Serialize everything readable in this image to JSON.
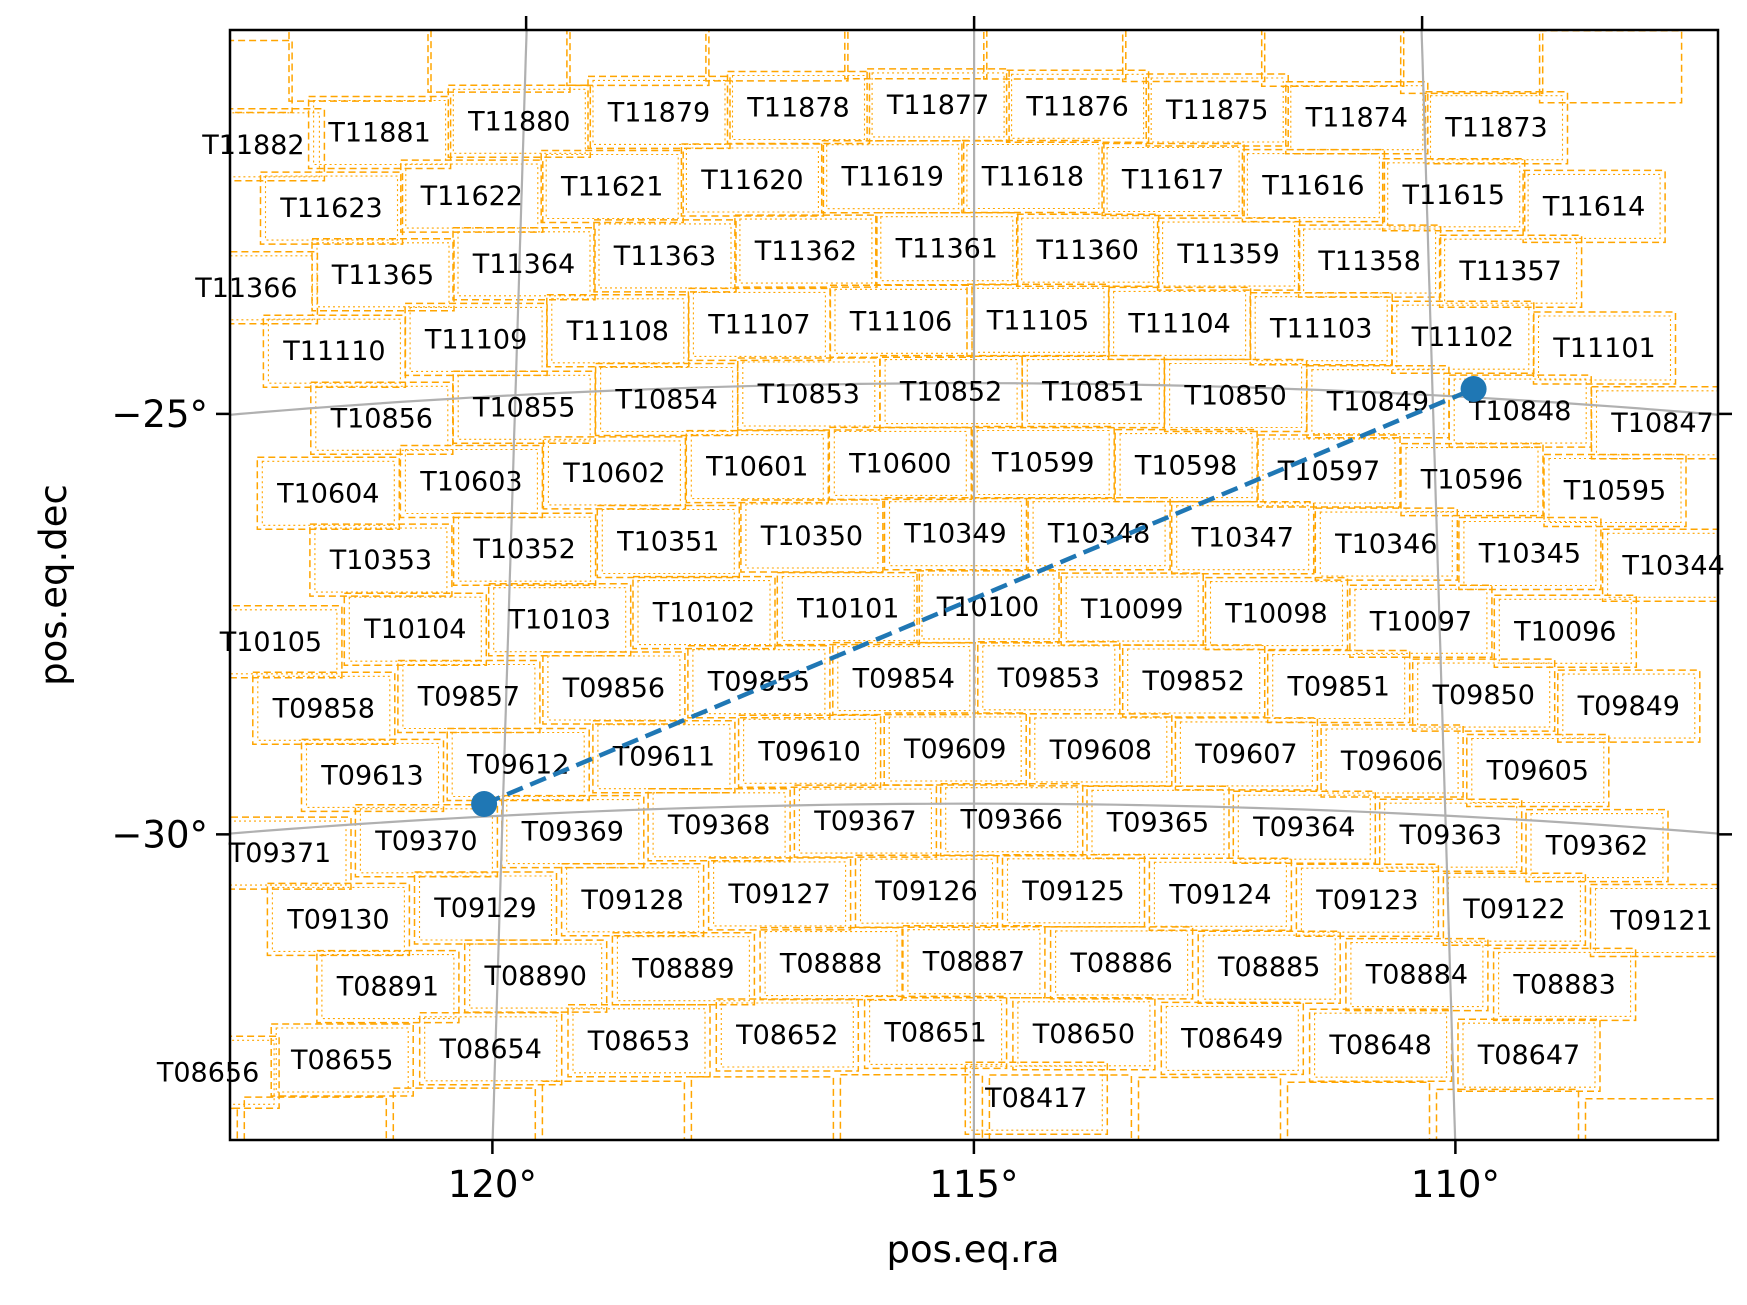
{
  "chart_data": {
    "type": "scatter",
    "xlabel": "pos.eq.ra",
    "ylabel": "pos.eq.dec",
    "x_inverted": true,
    "xlim": [
      123.0,
      107.0
    ],
    "ylim": [
      -34.0,
      -20.8
    ],
    "x_ticks": [
      {
        "value": 120,
        "label": "120°"
      },
      {
        "value": 115,
        "label": "115°"
      },
      {
        "value": 110,
        "label": "110°"
      }
    ],
    "y_ticks": [
      {
        "value": -25,
        "label": "−25°"
      },
      {
        "value": -30,
        "label": "−30°"
      }
    ],
    "grid": true,
    "colors": {
      "tiles": "#ffa500",
      "line": "#1f77b4",
      "grid": "#b0b0b0"
    },
    "series": [
      {
        "values": [
          {
            "ra": 120.2,
            "dec": -29.85
          },
          {
            "ra": 109.55,
            "dec": -24.9
          }
        ],
        "style": "dashed-line-with-endpoint-markers"
      }
    ],
    "tiles": [
      {
        "label": "T11882",
        "ra": 123.0,
        "dec": -21.8
      },
      {
        "label": "T11881",
        "ra": 121.6,
        "dec": -21.77
      },
      {
        "label": "T11880",
        "ra": 120.05,
        "dec": -21.74
      },
      {
        "label": "T11879",
        "ra": 118.5,
        "dec": -21.71
      },
      {
        "label": "T11878",
        "ra": 116.95,
        "dec": -21.7
      },
      {
        "label": "T11877",
        "ra": 115.4,
        "dec": -21.69
      },
      {
        "label": "T11876",
        "ra": 113.85,
        "dec": -21.7
      },
      {
        "label": "T11875",
        "ra": 112.3,
        "dec": -21.71
      },
      {
        "label": "T11874",
        "ra": 110.75,
        "dec": -21.74
      },
      {
        "label": "T11873",
        "ra": 109.2,
        "dec": -21.77
      },
      {
        "label": "T11623",
        "ra": 122.1,
        "dec": -22.63
      },
      {
        "label": "T11622",
        "ra": 120.55,
        "dec": -22.6
      },
      {
        "label": "T11621",
        "ra": 119.0,
        "dec": -22.57
      },
      {
        "label": "T11620",
        "ra": 117.45,
        "dec": -22.55
      },
      {
        "label": "T11619",
        "ra": 115.9,
        "dec": -22.54
      },
      {
        "label": "T11618",
        "ra": 114.35,
        "dec": -22.54
      },
      {
        "label": "T11617",
        "ra": 112.8,
        "dec": -22.55
      },
      {
        "label": "T11616",
        "ra": 111.25,
        "dec": -22.57
      },
      {
        "label": "T11615",
        "ra": 109.7,
        "dec": -22.6
      },
      {
        "label": "T11614",
        "ra": 108.15,
        "dec": -22.63
      },
      {
        "label": "T11366",
        "ra": 123.0,
        "dec": -23.5
      },
      {
        "label": "T11365",
        "ra": 121.5,
        "dec": -23.47
      },
      {
        "label": "T11364",
        "ra": 119.95,
        "dec": -23.44
      },
      {
        "label": "T11363",
        "ra": 118.4,
        "dec": -23.42
      },
      {
        "label": "T11362",
        "ra": 116.85,
        "dec": -23.41
      },
      {
        "label": "T11361",
        "ra": 115.3,
        "dec": -23.4
      },
      {
        "label": "T11360",
        "ra": 113.75,
        "dec": -23.41
      },
      {
        "label": "T11359",
        "ra": 112.2,
        "dec": -23.42
      },
      {
        "label": "T11358",
        "ra": 110.65,
        "dec": -23.44
      },
      {
        "label": "T11357",
        "ra": 109.1,
        "dec": -23.47
      },
      {
        "label": "T11110",
        "ra": 122.0,
        "dec": -24.34
      },
      {
        "label": "T11109",
        "ra": 120.45,
        "dec": -24.31
      },
      {
        "label": "T11108",
        "ra": 118.9,
        "dec": -24.29
      },
      {
        "label": "T11107",
        "ra": 117.35,
        "dec": -24.27
      },
      {
        "label": "T11106",
        "ra": 115.8,
        "dec": -24.26
      },
      {
        "label": "T11105",
        "ra": 114.3,
        "dec": -24.25
      },
      {
        "label": "T11104",
        "ra": 112.75,
        "dec": -24.26
      },
      {
        "label": "T11103",
        "ra": 111.2,
        "dec": -24.27
      },
      {
        "label": "T11102",
        "ra": 109.65,
        "dec": -24.29
      },
      {
        "label": "T11101",
        "ra": 108.1,
        "dec": -24.31
      },
      {
        "label": "T10856",
        "ra": 121.45,
        "dec": -25.18
      },
      {
        "label": "T10855",
        "ra": 119.9,
        "dec": -25.15
      },
      {
        "label": "T10854",
        "ra": 118.35,
        "dec": -25.13
      },
      {
        "label": "T10853",
        "ra": 116.8,
        "dec": -25.11
      },
      {
        "label": "T10852",
        "ra": 115.25,
        "dec": -25.1
      },
      {
        "label": "T10851",
        "ra": 113.7,
        "dec": -25.09
      },
      {
        "label": "T10850",
        "ra": 112.15,
        "dec": -25.1
      },
      {
        "label": "T10849",
        "ra": 110.6,
        "dec": -25.11
      },
      {
        "label": "T10848",
        "ra": 109.05,
        "dec": -25.13
      },
      {
        "label": "T10847",
        "ra": 107.5,
        "dec": -25.15
      },
      {
        "label": "T10604",
        "ra": 122.0,
        "dec": -26.03
      },
      {
        "label": "T10603",
        "ra": 120.45,
        "dec": -26.0
      },
      {
        "label": "T10602",
        "ra": 118.9,
        "dec": -25.98
      },
      {
        "label": "T10601",
        "ra": 117.35,
        "dec": -25.96
      },
      {
        "label": "T10600",
        "ra": 115.8,
        "dec": -25.95
      },
      {
        "label": "T10599",
        "ra": 114.25,
        "dec": -25.94
      },
      {
        "label": "T10598",
        "ra": 112.7,
        "dec": -25.95
      },
      {
        "label": "T10597",
        "ra": 111.15,
        "dec": -25.96
      },
      {
        "label": "T10596",
        "ra": 109.6,
        "dec": -25.98
      },
      {
        "label": "T10595",
        "ra": 108.05,
        "dec": -26.0
      },
      {
        "label": "T10353",
        "ra": 121.4,
        "dec": -26.87
      },
      {
        "label": "T10352",
        "ra": 119.85,
        "dec": -26.84
      },
      {
        "label": "T10351",
        "ra": 118.3,
        "dec": -26.82
      },
      {
        "label": "T10350",
        "ra": 116.75,
        "dec": -26.8
      },
      {
        "label": "T10349",
        "ra": 115.2,
        "dec": -26.79
      },
      {
        "label": "T10348",
        "ra": 113.65,
        "dec": -26.78
      },
      {
        "label": "T10347",
        "ra": 112.1,
        "dec": -26.79
      },
      {
        "label": "T10346",
        "ra": 110.55,
        "dec": -26.8
      },
      {
        "label": "T10345",
        "ra": 109.0,
        "dec": -26.82
      },
      {
        "label": "T10344",
        "ra": 107.45,
        "dec": -26.84
      },
      {
        "label": "T10105",
        "ra": 122.55,
        "dec": -27.75
      },
      {
        "label": "T10104",
        "ra": 121.0,
        "dec": -27.72
      },
      {
        "label": "T10103",
        "ra": 119.45,
        "dec": -27.7
      },
      {
        "label": "T10102",
        "ra": 117.9,
        "dec": -27.68
      },
      {
        "label": "T10101",
        "ra": 116.35,
        "dec": -27.67
      },
      {
        "label": "T10100",
        "ra": 114.85,
        "dec": -27.66
      },
      {
        "label": "T10099",
        "ra": 113.3,
        "dec": -27.67
      },
      {
        "label": "T10098",
        "ra": 111.75,
        "dec": -27.68
      },
      {
        "label": "T10097",
        "ra": 110.2,
        "dec": -27.7
      },
      {
        "label": "T10096",
        "ra": 108.65,
        "dec": -27.72
      },
      {
        "label": "T09858",
        "ra": 121.95,
        "dec": -28.59
      },
      {
        "label": "T09857",
        "ra": 120.4,
        "dec": -28.56
      },
      {
        "label": "T09856",
        "ra": 118.85,
        "dec": -28.54
      },
      {
        "label": "T09855",
        "ra": 117.3,
        "dec": -28.52
      },
      {
        "label": "T09854",
        "ra": 115.75,
        "dec": -28.51
      },
      {
        "label": "T09853",
        "ra": 114.2,
        "dec": -28.5
      },
      {
        "label": "T09852",
        "ra": 112.65,
        "dec": -28.51
      },
      {
        "label": "T09851",
        "ra": 111.1,
        "dec": -28.52
      },
      {
        "label": "T09850",
        "ra": 109.55,
        "dec": -28.54
      },
      {
        "label": "T09849",
        "ra": 108.0,
        "dec": -28.56
      },
      {
        "label": "T09613",
        "ra": 121.4,
        "dec": -29.43
      },
      {
        "label": "T09612",
        "ra": 119.85,
        "dec": -29.4
      },
      {
        "label": "T09611",
        "ra": 118.3,
        "dec": -29.38
      },
      {
        "label": "T09610",
        "ra": 116.75,
        "dec": -29.36
      },
      {
        "label": "T09609",
        "ra": 115.2,
        "dec": -29.35
      },
      {
        "label": "T09608",
        "ra": 113.65,
        "dec": -29.35
      },
      {
        "label": "T09607",
        "ra": 112.1,
        "dec": -29.36
      },
      {
        "label": "T09606",
        "ra": 110.55,
        "dec": -29.38
      },
      {
        "label": "T09605",
        "ra": 109.0,
        "dec": -29.4
      },
      {
        "label": "T09371",
        "ra": 122.35,
        "dec": -30.28
      },
      {
        "label": "T09370",
        "ra": 120.8,
        "dec": -30.25
      },
      {
        "label": "T09369",
        "ra": 119.25,
        "dec": -30.23
      },
      {
        "label": "T09368",
        "ra": 117.7,
        "dec": -30.21
      },
      {
        "label": "T09367",
        "ra": 116.15,
        "dec": -30.2
      },
      {
        "label": "T09366",
        "ra": 114.6,
        "dec": -30.19
      },
      {
        "label": "T09365",
        "ra": 113.05,
        "dec": -30.2
      },
      {
        "label": "T09364",
        "ra": 111.5,
        "dec": -30.21
      },
      {
        "label": "T09363",
        "ra": 109.95,
        "dec": -30.23
      },
      {
        "label": "T09362",
        "ra": 108.4,
        "dec": -30.25
      },
      {
        "label": "T09130",
        "ra": 121.7,
        "dec": -31.12
      },
      {
        "label": "T09129",
        "ra": 120.15,
        "dec": -31.09
      },
      {
        "label": "T09128",
        "ra": 118.6,
        "dec": -31.07
      },
      {
        "label": "T09127",
        "ra": 117.05,
        "dec": -31.05
      },
      {
        "label": "T09126",
        "ra": 115.5,
        "dec": -31.04
      },
      {
        "label": "T09125",
        "ra": 113.95,
        "dec": -31.03
      },
      {
        "label": "T09124",
        "ra": 112.4,
        "dec": -31.04
      },
      {
        "label": "T09123",
        "ra": 110.85,
        "dec": -31.05
      },
      {
        "label": "T09122",
        "ra": 109.3,
        "dec": -31.07
      },
      {
        "label": "T09121",
        "ra": 107.75,
        "dec": -31.09
      },
      {
        "label": "T08891",
        "ra": 121.15,
        "dec": -31.96
      },
      {
        "label": "T08890",
        "ra": 119.6,
        "dec": -31.93
      },
      {
        "label": "T08889",
        "ra": 118.05,
        "dec": -31.91
      },
      {
        "label": "T08888",
        "ra": 116.5,
        "dec": -31.89
      },
      {
        "label": "T08887",
        "ra": 115.0,
        "dec": -31.88
      },
      {
        "label": "T08886",
        "ra": 113.45,
        "dec": -31.88
      },
      {
        "label": "T08885",
        "ra": 111.9,
        "dec": -31.89
      },
      {
        "label": "T08884",
        "ra": 110.35,
        "dec": -31.91
      },
      {
        "label": "T08883",
        "ra": 108.8,
        "dec": -31.93
      },
      {
        "label": "T08656",
        "ra": 123.0,
        "dec": -32.83
      },
      {
        "label": "T08655",
        "ra": 121.6,
        "dec": -32.8
      },
      {
        "label": "T08654",
        "ra": 120.05,
        "dec": -32.77
      },
      {
        "label": "T08653",
        "ra": 118.5,
        "dec": -32.75
      },
      {
        "label": "T08652",
        "ra": 116.95,
        "dec": -32.73
      },
      {
        "label": "T08651",
        "ra": 115.4,
        "dec": -32.72
      },
      {
        "label": "T08650",
        "ra": 113.85,
        "dec": -32.73
      },
      {
        "label": "T08649",
        "ra": 112.3,
        "dec": -32.75
      },
      {
        "label": "T08648",
        "ra": 110.75,
        "dec": -32.77
      },
      {
        "label": "T08647",
        "ra": 109.2,
        "dec": -32.8
      },
      {
        "label": "T08417",
        "ra": 114.35,
        "dec": -33.5
      }
    ]
  }
}
